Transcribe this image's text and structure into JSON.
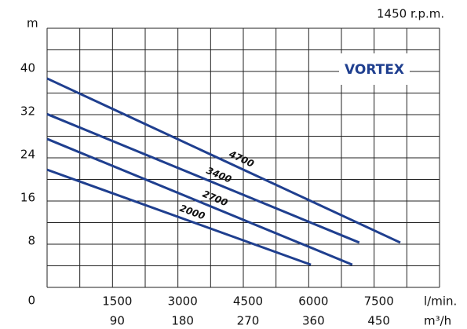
{
  "chart_data": {
    "type": "line",
    "brand": "VORTEX",
    "speed": "1450 r.p.m.",
    "ylabel": "m",
    "xlabel": "l/min.",
    "x2label": "m³/h",
    "xlim": [
      0,
      9000
    ],
    "xticks": [
      1500,
      3000,
      4500,
      6000,
      7500
    ],
    "x2lim": [
      0,
      540
    ],
    "x2ticks": [
      90,
      180,
      270,
      360,
      450
    ],
    "ylim": [
      0,
      48
    ],
    "yticks": [
      0,
      8,
      16,
      24,
      32,
      40
    ],
    "grid": true,
    "color": "#1f3f8f",
    "series": [
      {
        "name": "4700",
        "x": [
          0,
          8100
        ],
        "values": [
          38.7,
          8.3
        ]
      },
      {
        "name": "3400",
        "x": [
          0,
          7160
        ],
        "values": [
          32.1,
          8.3
        ]
      },
      {
        "name": "2700",
        "x": [
          0,
          7000
        ],
        "values": [
          27.5,
          4.2
        ]
      },
      {
        "name": "2000",
        "x": [
          0,
          6050
        ],
        "values": [
          21.8,
          4.2
        ]
      }
    ]
  }
}
